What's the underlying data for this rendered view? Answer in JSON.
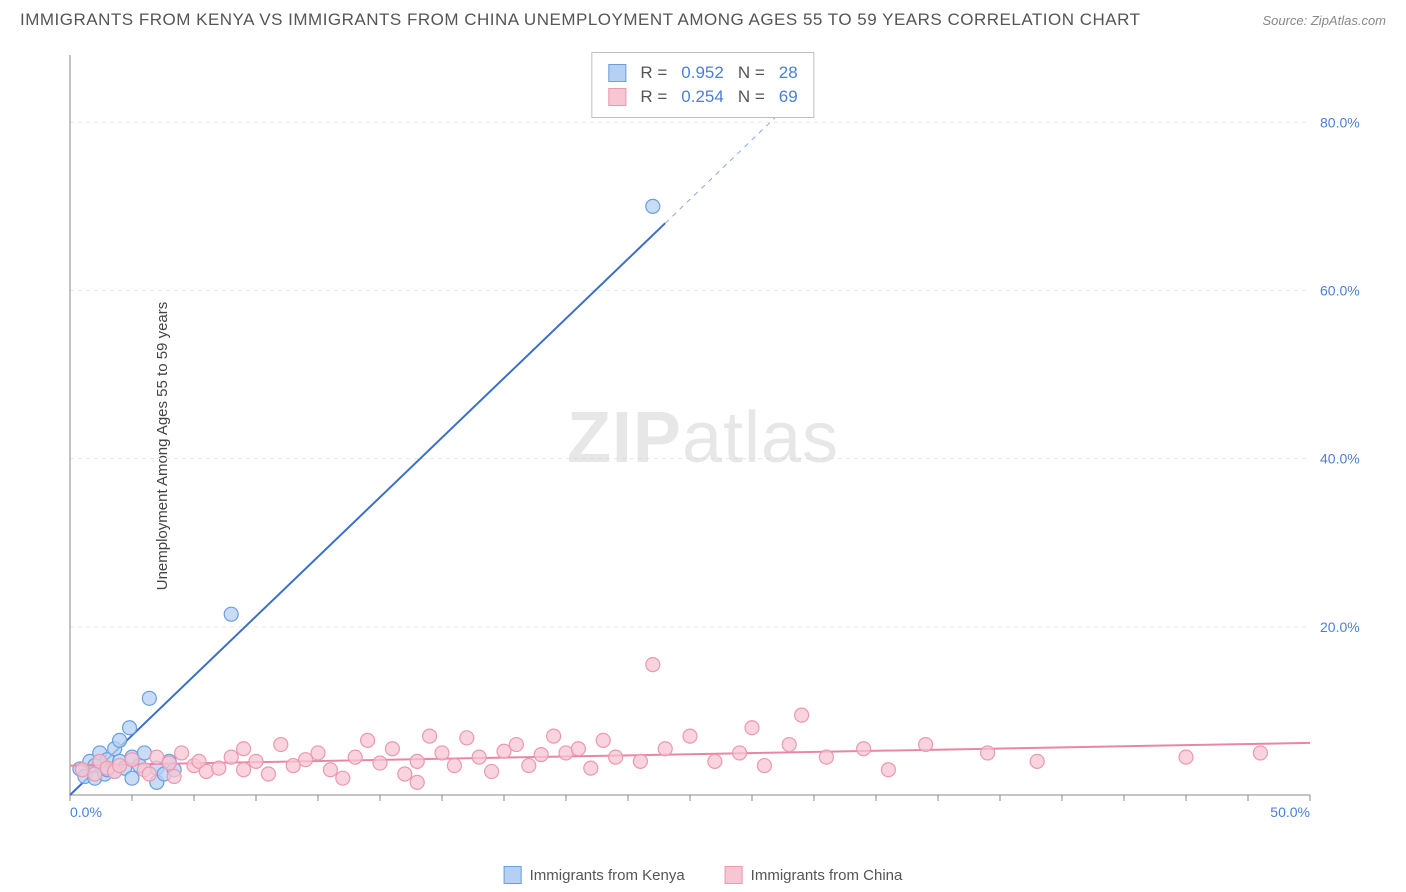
{
  "title": "IMMIGRANTS FROM KENYA VS IMMIGRANTS FROM CHINA UNEMPLOYMENT AMONG AGES 55 TO 59 YEARS CORRELATION CHART",
  "source": "Source: ZipAtlas.com",
  "watermark_a": "ZIP",
  "watermark_b": "atlas",
  "y_axis_label": "Unemployment Among Ages 55 to 59 years",
  "chart": {
    "type": "scatter-correlation",
    "background_color": "#ffffff",
    "grid_color": "#e8e8e8",
    "axis_color": "#888888",
    "tick_label_color": "#4a7fd8",
    "xlim": [
      0,
      50
    ],
    "ylim": [
      0,
      88
    ],
    "x_ticks_major": [
      0,
      50
    ],
    "x_ticks_major_labels": [
      "0.0%",
      "50.0%"
    ],
    "x_ticks_minor_step": 2.5,
    "y_ticks_major": [
      20,
      40,
      60,
      80
    ],
    "y_ticks_major_labels": [
      "20.0%",
      "40.0%",
      "60.0%",
      "80.0%"
    ],
    "title_fontsize": 17,
    "label_fontsize": 15,
    "tick_fontsize": 14,
    "marker_radius": 7,
    "marker_stroke_width": 1.2,
    "line_width": 2,
    "series": [
      {
        "name": "Immigrants from Kenya",
        "color_fill": "#b5d0f2",
        "color_stroke": "#6a9fe0",
        "line_color": "#3a70c8",
        "R": "0.952",
        "N": "28",
        "trend": {
          "x1": 0,
          "y1": 0,
          "x2": 24,
          "y2": 68,
          "dash_x2": 30,
          "dash_y2": 85
        },
        "points": [
          [
            0.4,
            3.1
          ],
          [
            0.6,
            2.2
          ],
          [
            0.8,
            4.0
          ],
          [
            1.0,
            3.5
          ],
          [
            1.0,
            2.0
          ],
          [
            1.2,
            3.8
          ],
          [
            1.2,
            5.0
          ],
          [
            1.4,
            2.5
          ],
          [
            1.5,
            4.2
          ],
          [
            1.5,
            3.0
          ],
          [
            1.8,
            5.5
          ],
          [
            1.8,
            2.8
          ],
          [
            2.0,
            4.0
          ],
          [
            2.0,
            6.5
          ],
          [
            2.2,
            3.2
          ],
          [
            2.4,
            8.0
          ],
          [
            2.5,
            4.5
          ],
          [
            2.5,
            2.0
          ],
          [
            2.8,
            3.5
          ],
          [
            3.0,
            5.0
          ],
          [
            3.2,
            11.5
          ],
          [
            3.5,
            3.2
          ],
          [
            3.5,
            1.5
          ],
          [
            3.8,
            2.5
          ],
          [
            4.0,
            4.0
          ],
          [
            4.2,
            3.0
          ],
          [
            6.5,
            21.5
          ],
          [
            23.5,
            70.0
          ]
        ]
      },
      {
        "name": "Immigrants from China",
        "color_fill": "#f7c6d3",
        "color_stroke": "#eb98b0",
        "line_color": "#e887a4",
        "R": "0.254",
        "N": "69",
        "trend": {
          "x1": 0,
          "y1": 3.5,
          "x2": 50,
          "y2": 6.2
        },
        "points": [
          [
            0.5,
            3.0
          ],
          [
            1.0,
            2.5
          ],
          [
            1.2,
            4.0
          ],
          [
            1.5,
            3.2
          ],
          [
            1.8,
            2.8
          ],
          [
            2.0,
            3.5
          ],
          [
            2.5,
            4.2
          ],
          [
            3.0,
            3.0
          ],
          [
            3.2,
            2.5
          ],
          [
            3.5,
            4.5
          ],
          [
            4.0,
            3.8
          ],
          [
            4.2,
            2.2
          ],
          [
            4.5,
            5.0
          ],
          [
            5.0,
            3.5
          ],
          [
            5.2,
            4.0
          ],
          [
            5.5,
            2.8
          ],
          [
            6.0,
            3.2
          ],
          [
            6.5,
            4.5
          ],
          [
            7.0,
            5.5
          ],
          [
            7.0,
            3.0
          ],
          [
            7.5,
            4.0
          ],
          [
            8.0,
            2.5
          ],
          [
            8.5,
            6.0
          ],
          [
            9.0,
            3.5
          ],
          [
            9.5,
            4.2
          ],
          [
            10.0,
            5.0
          ],
          [
            10.5,
            3.0
          ],
          [
            11.0,
            2.0
          ],
          [
            11.5,
            4.5
          ],
          [
            12.0,
            6.5
          ],
          [
            12.5,
            3.8
          ],
          [
            13.0,
            5.5
          ],
          [
            13.5,
            2.5
          ],
          [
            14.0,
            1.5
          ],
          [
            14.0,
            4.0
          ],
          [
            14.5,
            7.0
          ],
          [
            15.0,
            5.0
          ],
          [
            15.5,
            3.5
          ],
          [
            16.0,
            6.8
          ],
          [
            16.5,
            4.5
          ],
          [
            17.0,
            2.8
          ],
          [
            17.5,
            5.2
          ],
          [
            18.0,
            6.0
          ],
          [
            18.5,
            3.5
          ],
          [
            19.0,
            4.8
          ],
          [
            19.5,
            7.0
          ],
          [
            20.0,
            5.0
          ],
          [
            20.5,
            5.5
          ],
          [
            21.0,
            3.2
          ],
          [
            21.5,
            6.5
          ],
          [
            22.0,
            4.5
          ],
          [
            23.0,
            4.0
          ],
          [
            23.5,
            15.5
          ],
          [
            24.0,
            5.5
          ],
          [
            25.0,
            7.0
          ],
          [
            26.0,
            4.0
          ],
          [
            27.0,
            5.0
          ],
          [
            27.5,
            8.0
          ],
          [
            28.0,
            3.5
          ],
          [
            29.0,
            6.0
          ],
          [
            29.5,
            9.5
          ],
          [
            30.5,
            4.5
          ],
          [
            32.0,
            5.5
          ],
          [
            33.0,
            3.0
          ],
          [
            34.5,
            6.0
          ],
          [
            37.0,
            5.0
          ],
          [
            39.0,
            4.0
          ],
          [
            45.0,
            4.5
          ],
          [
            48.0,
            5.0
          ]
        ]
      }
    ]
  },
  "stats_box": {
    "rows": [
      {
        "swatch_fill": "#b5d0f2",
        "swatch_stroke": "#6a9fe0",
        "r_label": "R =",
        "r_val": "0.952",
        "n_label": "N =",
        "n_val": "28"
      },
      {
        "swatch_fill": "#f7c6d3",
        "swatch_stroke": "#eb98b0",
        "r_label": "R =",
        "r_val": "0.254",
        "n_label": "N =",
        "n_val": "69"
      }
    ]
  },
  "legend": {
    "items": [
      {
        "swatch_fill": "#b5d0f2",
        "swatch_stroke": "#6a9fe0",
        "label": "Immigrants from Kenya"
      },
      {
        "swatch_fill": "#f7c6d3",
        "swatch_stroke": "#eb98b0",
        "label": "Immigrants from China"
      }
    ]
  }
}
